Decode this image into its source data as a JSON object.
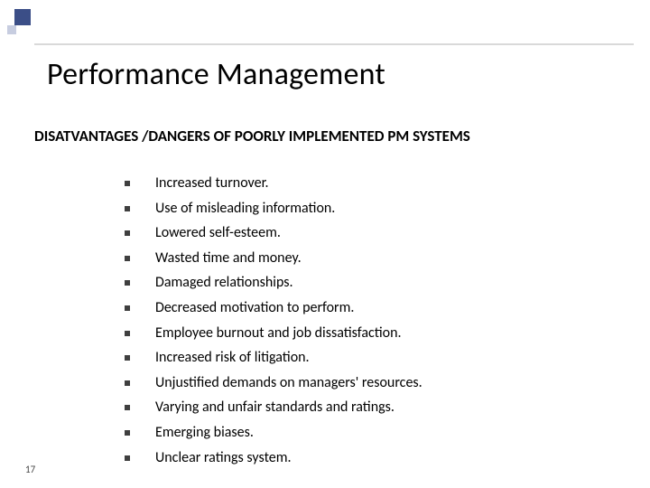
{
  "deco": {
    "big_color": "#3b4e87",
    "small_color": "#c7cde0",
    "rule_color": "#d9d9d9"
  },
  "title": "Performance Management",
  "title_fontsize": 34,
  "subtitle": "DISATVANTAGES /DANGERS OF POORLY IMPLEMENTED PM SYSTEMS",
  "subtitle_fontsize": 17,
  "list": {
    "bullet_color": "#3f3f3f",
    "text_fontsize": 16,
    "items": [
      "Increased turnover.",
      "Use of misleading information.",
      "Lowered self-esteem.",
      "Wasted time and money.",
      "Damaged relationships.",
      "Decreased motivation to perform.",
      "Employee burnout and job dissatisfaction.",
      "Increased risk of litigation.",
      "Unjustified demands on managers' resources.",
      "Varying and unfair standards and ratings.",
      "Emerging biases.",
      "Unclear ratings system."
    ]
  },
  "page_number": "17",
  "background_color": "#ffffff"
}
